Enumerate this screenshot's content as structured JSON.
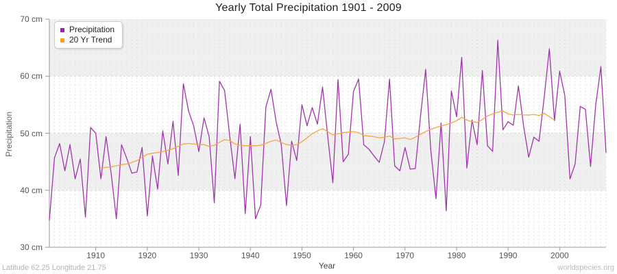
{
  "title": "Yearly Total Precipitation 1901 - 2009",
  "legend": {
    "items": [
      {
        "label": "Precipitation",
        "color": "#9B23A5"
      },
      {
        "label": "20 Yr Trend",
        "color": "#FF9E1B"
      }
    ]
  },
  "x_axis": {
    "label": "Year",
    "ticks": [
      "1910",
      "1920",
      "1930",
      "1940",
      "1950",
      "1960",
      "1970",
      "1980",
      "1990",
      "2000"
    ]
  },
  "y_axis": {
    "label": "Precipitation",
    "ticks": [
      "70 cm",
      "60 cm",
      "50 cm",
      "40 cm",
      "30 cm"
    ]
  },
  "footer": {
    "left": "Latitude 62.25 Longitude 21.75",
    "right": "worldspecies.org"
  },
  "colors": {
    "precipitation_line": "#A134AD",
    "trend_line": "#FBA33C",
    "band_fill": "#f0f0f0",
    "grid_dash": "#e2e2e2",
    "hgrid_dash": "#d9d9d9",
    "axis": "#999999"
  },
  "chart_data": {
    "type": "line",
    "title": "Yearly Total Precipitation 1901 - 2009",
    "xlabel": "Year",
    "ylabel": "Precipitation",
    "x_start": 1901,
    "x_end": 2009,
    "ylim": [
      30,
      70
    ],
    "y_unit": "cm",
    "x_tick_values": [
      1910,
      1920,
      1930,
      1940,
      1950,
      1960,
      1970,
      1980,
      1990,
      2000
    ],
    "y_tick_values": [
      70,
      60,
      50,
      40,
      30
    ],
    "shaded_bands": [
      [
        40,
        50
      ],
      [
        60,
        70
      ]
    ],
    "grid": "yearly vertical dashed lines; dashed horizontal lines at 40/50/60",
    "legend_position": "top-left",
    "series": [
      {
        "name": "Precipitation",
        "first_year": 1901,
        "values": [
          34.7,
          45.7,
          48.2,
          43.4,
          48.0,
          42.0,
          45.5,
          35.3,
          51.0,
          50.0,
          42.0,
          49.4,
          42.9,
          35.0,
          48.0,
          45.6,
          43.0,
          43.2,
          47.5,
          35.5,
          46.0,
          40.2,
          50.4,
          44.6,
          52.1,
          42.6,
          58.7,
          53.9,
          51.3,
          46.8,
          52.7,
          49.4,
          37.8,
          59.1,
          57.5,
          49.5,
          42.0,
          51.6,
          35.9,
          49.4,
          35.0,
          37.4,
          54.6,
          57.7,
          52.0,
          48.0,
          37.3,
          48.6,
          45.2,
          55.0,
          51.3,
          54.5,
          51.6,
          58.1,
          49.5,
          41.3,
          59.4,
          45.0,
          46.3,
          57.3,
          59.5,
          48.0,
          47.2,
          46.0,
          44.9,
          48.5,
          59.5,
          44.3,
          43.4,
          47.5,
          43.7,
          43.8,
          52.9,
          61.2,
          47.0,
          38.5,
          51.8,
          36.4,
          57.4,
          52.9,
          63.3,
          43.9,
          52.3,
          48.0,
          61.0,
          47.8,
          46.8,
          66.3,
          50.6,
          52.0,
          51.4,
          58.3,
          51.3,
          45.8,
          49.3,
          48.6,
          56.3,
          64.8,
          52.2,
          60.9,
          56.6,
          42.0,
          44.6,
          54.7,
          54.2,
          44.2,
          55.0,
          61.7,
          46.6
        ]
      },
      {
        "name": "20 Yr Trend",
        "first_year": 1911,
        "values": [
          43.9,
          44.0,
          44.1,
          44.3,
          44.5,
          44.6,
          44.9,
          45.2,
          45.8,
          46.3,
          46.5,
          46.6,
          46.8,
          47.0,
          47.3,
          47.7,
          48.1,
          48.2,
          48.1,
          48.0,
          48.0,
          47.7,
          47.9,
          48.4,
          48.9,
          48.7,
          48.1,
          47.9,
          47.8,
          47.8,
          47.8,
          47.9,
          48.2,
          48.6,
          48.8,
          48.4,
          48.0,
          47.9,
          48.0,
          48.5,
          49.2,
          49.9,
          50.4,
          50.8,
          50.3,
          49.7,
          49.9,
          50.1,
          50.2,
          50.3,
          50.1,
          49.6,
          49.5,
          49.4,
          49.2,
          49.3,
          49.5,
          49.0,
          49.1,
          49.2,
          48.9,
          49.3,
          49.8,
          50.3,
          50.7,
          51.0,
          51.3,
          51.5,
          51.8,
          52.2,
          52.8,
          52.3,
          52.0,
          51.9,
          52.4,
          53.0,
          53.4,
          53.7,
          53.9,
          53.4,
          53.2,
          53.3,
          53.2,
          53.2,
          53.3,
          53.1,
          53.5,
          52.9,
          52.3
        ]
      }
    ]
  }
}
